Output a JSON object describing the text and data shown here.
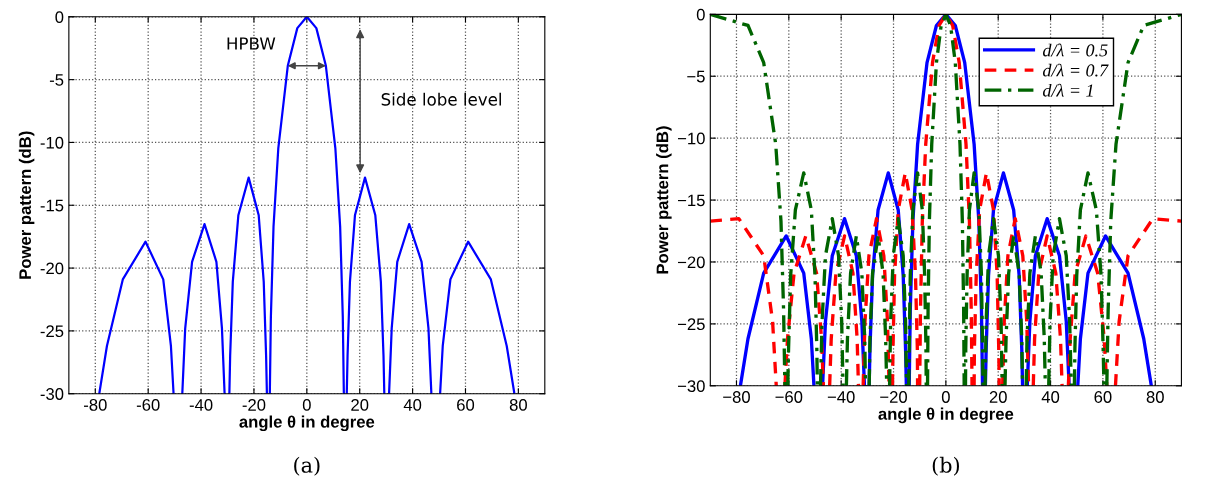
{
  "chart_data": [
    {
      "type": "line",
      "xlabel": "angle θ in degree",
      "ylabel": "Power pattern (dB)",
      "xlim": [
        -90,
        90
      ],
      "xticks": [
        -80,
        -60,
        -40,
        -20,
        0,
        20,
        40,
        60,
        80
      ],
      "ylim": [
        -30,
        0
      ],
      "yticks": [
        -30,
        -25,
        -20,
        -15,
        -10,
        -5,
        0
      ],
      "grid": true,
      "legend": false,
      "series": [
        {
          "color": "#0000ff",
          "line_style": "solid",
          "x": [
            -78.5,
            -75.6,
            -69.6,
            -61.0,
            -54.3,
            -51.4,
            -50.4,
            -48.6,
            -47.1,
            -46.0,
            -43.4,
            -38.7,
            -34.2,
            -32.1,
            -31.1,
            -30.0,
            -29.3,
            -29.0,
            -28.0,
            -25.9,
            -22.0,
            -18.2,
            -16.3,
            -15.4,
            -15.1,
            -14.5,
            -14.0,
            -13.6,
            -12.6,
            -10.8,
            -7.2,
            -3.6,
            0,
            3.6,
            7.2,
            10.8,
            12.6,
            13.6,
            14.0,
            14.5,
            15.1,
            15.4,
            16.3,
            18.2,
            22.0,
            25.9,
            28.0,
            29.0,
            29.3,
            30.0,
            31.1,
            32.1,
            34.2,
            38.7,
            43.4,
            46.0,
            47.1,
            48.6,
            50.4,
            51.4,
            54.3,
            61.0,
            69.6,
            75.6,
            78.5
          ],
          "values": [
            -30,
            -26.2,
            -20.9,
            -17.9,
            -20.9,
            -26.2,
            -30,
            null,
            -30,
            -24.8,
            -19.5,
            -16.5,
            -19.5,
            -24.8,
            -30,
            null,
            -30,
            -27.0,
            -21.1,
            -15.8,
            -12.8,
            -15.8,
            -21.1,
            -27.0,
            -30,
            null,
            -30,
            -23.9,
            -16.7,
            -10.5,
            -3.9,
            -0.9,
            0,
            -0.9,
            -3.9,
            -10.5,
            -16.7,
            -23.9,
            -30,
            null,
            -30,
            -27.0,
            -21.1,
            -15.8,
            -12.8,
            -15.8,
            -21.1,
            -27.0,
            -30,
            null,
            -30,
            -24.8,
            -19.5,
            -16.5,
            -19.5,
            -24.8,
            -30,
            null,
            -30,
            -26.2,
            -20.9,
            -17.9,
            -20.9,
            -26.2,
            -30
          ]
        }
      ],
      "annotations": [
        {
          "text": "HPBW",
          "x": 7.2,
          "y": -3.9
        },
        "Side lobe level",
        "(a)"
      ]
    },
    {
      "type": "line",
      "xlabel": "angle θ in degree",
      "ylabel": "Power pattern (dB)",
      "xlim": [
        -90,
        90
      ],
      "xticks": [
        {
          "value": -80,
          "label": "−80"
        },
        {
          "value": -60,
          "label": "−60"
        },
        {
          "value": -40,
          "label": "−40"
        },
        {
          "value": -20,
          "label": "−20"
        },
        0,
        20,
        40,
        60,
        80
      ],
      "ylim": [
        -30,
        0
      ],
      "yticks": [
        {
          "value": -30,
          "label": "−30"
        },
        {
          "value": -25,
          "label": "−25"
        },
        {
          "value": -20,
          "label": "−20"
        },
        {
          "value": -15,
          "label": "−15"
        },
        {
          "value": -10,
          "label": "−10"
        },
        {
          "value": -5,
          "label": "−5"
        },
        0
      ],
      "grid": true,
      "legend": "top right",
      "series": [
        {
          "name": "d/λ = 0.5",
          "color": "#0000ff",
          "line_style": "solid",
          "x": [
            -78.5,
            -75.6,
            -69.6,
            -61.0,
            -54.3,
            -51.4,
            -50.4,
            -48.6,
            -47.1,
            -46.0,
            -43.4,
            -38.7,
            -34.2,
            -32.1,
            -31.1,
            -30.0,
            -29.3,
            -29.0,
            -28.0,
            -25.9,
            -22.0,
            -18.2,
            -16.3,
            -15.4,
            -15.1,
            -14.5,
            -14.0,
            -13.6,
            -12.6,
            -10.8,
            -7.2,
            -3.6,
            0,
            3.6,
            7.2,
            10.8,
            12.6,
            13.6,
            14.0,
            14.5,
            15.1,
            15.4,
            16.3,
            18.2,
            22.0,
            25.9,
            28.0,
            29.0,
            29.3,
            30.0,
            31.1,
            32.1,
            34.2,
            38.7,
            43.4,
            46.0,
            47.1,
            48.6,
            50.4,
            51.4,
            54.3,
            61.0,
            69.6,
            75.6,
            78.5
          ],
          "values": [
            -30,
            -26.2,
            -20.9,
            -17.9,
            -20.9,
            -26.2,
            -30,
            null,
            -30,
            -24.8,
            -19.5,
            -16.5,
            -19.5,
            -24.8,
            -30,
            null,
            -30,
            -27.0,
            -21.1,
            -15.8,
            -12.8,
            -15.8,
            -21.1,
            -27.0,
            -30,
            null,
            -30,
            -23.9,
            -16.7,
            -10.5,
            -3.9,
            -0.9,
            0,
            -0.9,
            -3.9,
            -10.5,
            -16.7,
            -23.9,
            -30,
            null,
            -30,
            -27.0,
            -21.1,
            -15.8,
            -12.8,
            -15.8,
            -21.1,
            -27.0,
            -30,
            null,
            -30,
            -24.8,
            -19.5,
            -16.5,
            -19.5,
            -24.8,
            -30,
            null,
            -30,
            -26.2,
            -20.9,
            -17.9,
            -20.9,
            -26.2,
            -30
          ]
        },
        {
          "name": "d/λ = 0.7",
          "color": "#ff0000",
          "line_style": "dashed",
          "x": [
            -90,
            -79.1,
            -69.6,
            -66.2,
            -64.8,
            -63.2,
            -61.5,
            -60.5,
            -58.0,
            -53.5,
            -49.4,
            -47.5,
            -46.8,
            -45.6,
            -44.4,
            -43.8,
            -42.0,
            -38.7,
            -35.5,
            -33.9,
            -33.4,
            -32.4,
            -31.6,
            -30.9,
            -29.4,
            -26.5,
            -23.7,
            -22.3,
            -21.7,
            -20.9,
            -20.4,
            -20.2,
            -19.6,
            -18.2,
            -15.5,
            -12.9,
            -11.6,
            -10.9,
            -10.8,
            -10.3,
            -10.0,
            -9.7,
            -9.0,
            -7.7,
            -5.1,
            -2.6,
            0,
            2.6,
            5.1,
            7.7,
            9.0,
            9.7,
            10.0,
            10.3,
            10.8,
            10.9,
            11.6,
            12.9,
            15.5,
            18.2,
            19.6,
            20.2,
            20.4,
            20.9,
            21.7,
            22.3,
            23.7,
            26.5,
            29.4,
            30.9,
            31.6,
            32.4,
            33.4,
            33.9,
            35.5,
            38.7,
            42.0,
            43.8,
            44.4,
            45.6,
            46.8,
            47.5,
            49.4,
            53.5,
            58.0,
            60.5,
            61.5,
            63.2,
            64.8,
            66.2,
            69.6,
            79.1,
            90
          ],
          "values": [
            -16.7,
            -16.5,
            -19.5,
            -24.8,
            -30,
            null,
            -30,
            -26.2,
            -20.9,
            -17.9,
            -20.9,
            -26.2,
            -30,
            null,
            -30,
            -26.2,
            -20.9,
            -17.9,
            -20.9,
            -26.2,
            -30,
            null,
            -30,
            -24.8,
            -19.5,
            -16.5,
            -19.5,
            -24.8,
            -30,
            null,
            -30,
            -27.0,
            -21.1,
            -15.8,
            -12.8,
            -15.8,
            -21.1,
            -27.0,
            -30,
            null,
            -30,
            -23.9,
            -16.7,
            -10.5,
            -3.9,
            -0.9,
            0,
            -0.9,
            -3.9,
            -10.5,
            -16.7,
            -23.9,
            -30,
            null,
            -30,
            -27.0,
            -21.1,
            -15.8,
            -12.8,
            -15.8,
            -21.1,
            -27.0,
            -30,
            null,
            -30,
            -24.8,
            -19.5,
            -16.5,
            -19.5,
            -24.8,
            -30,
            null,
            -30,
            -26.2,
            -20.9,
            -17.9,
            -20.9,
            -26.2,
            -30,
            null,
            -30,
            -26.2,
            -20.9,
            -17.9,
            -20.9,
            -26.2,
            -30,
            null,
            -30,
            -24.8,
            -19.5,
            -16.5,
            -16.7
          ]
        },
        {
          "name": "d/λ = 1",
          "color": "#006400",
          "line_style": "dashdot",
          "x": [
            -90,
            -75.6,
            -69.6,
            -65.0,
            -63.0,
            -62.0,
            -61.5,
            -61.0,
            -60.4,
            -60.1,
            -59.3,
            -57.5,
            -54.3,
            -51.4,
            -50.0,
            -49.3,
            -49.1,
            -48.6,
            -47.9,
            -47.3,
            -46.0,
            -43.4,
            -41.0,
            -39.8,
            -39.3,
            -38.7,
            -38.0,
            -37.6,
            -36.4,
            -34.2,
            -32.1,
            -31.0,
            -30.7,
            -30.0,
            -29.3,
            -29.0,
            -28.0,
            -25.9,
            -24.0,
            -23.0,
            -22.6,
            -22.0,
            -21.5,
            -21.1,
            -20.1,
            -18.2,
            -16.3,
            -15.4,
            -15.0,
            -14.5,
            -14.2,
            -14.0,
            -13.6,
            -12.6,
            -10.8,
            -9.0,
            -8.1,
            -7.6,
            -7.5,
            -7.2,
            -7.0,
            -6.8,
            -6.3,
            -5.4,
            -3.6,
            -1.8,
            0,
            1.8,
            3.6,
            5.4,
            6.3,
            6.8,
            7.0,
            7.2,
            7.5,
            7.6,
            8.1,
            9.0,
            10.8,
            12.6,
            13.6,
            14.0,
            14.2,
            14.5,
            15.0,
            15.4,
            16.3,
            18.2,
            20.1,
            21.1,
            21.5,
            22.0,
            22.6,
            23.0,
            24.0,
            25.9,
            28.0,
            29.0,
            29.3,
            30.0,
            30.7,
            31.0,
            32.1,
            34.2,
            36.4,
            37.6,
            38.0,
            38.7,
            39.3,
            39.8,
            41.0,
            43.4,
            46.0,
            47.3,
            47.9,
            48.6,
            49.1,
            49.3,
            50.0,
            51.4,
            54.3,
            57.5,
            59.3,
            60.1,
            60.4,
            61.0,
            61.5,
            62.0,
            63.0,
            65.0,
            69.6,
            75.6,
            90
          ],
          "values": [
            0,
            -0.9,
            -3.9,
            -10.5,
            -16.7,
            -23.9,
            -30,
            null,
            -30,
            -27.0,
            -21.1,
            -15.8,
            -12.8,
            -15.8,
            -21.1,
            -27.0,
            -30,
            null,
            -30,
            -24.8,
            -19.5,
            -16.5,
            -19.5,
            -24.8,
            -30,
            null,
            -30,
            -26.2,
            -20.9,
            -17.9,
            -20.9,
            -26.2,
            -30,
            null,
            -30,
            -26.2,
            -20.9,
            -17.9,
            -20.9,
            -26.2,
            -30,
            null,
            -30,
            -24.8,
            -19.5,
            -16.5,
            -19.5,
            -24.8,
            -30,
            null,
            -30,
            -27.0,
            -21.1,
            -15.8,
            -12.8,
            -15.8,
            -21.1,
            -27.0,
            -30,
            null,
            -30,
            -23.9,
            -16.7,
            -10.5,
            -3.9,
            -0.9,
            0,
            -0.9,
            -3.9,
            -10.5,
            -16.7,
            -23.9,
            -30,
            null,
            -30,
            -27.0,
            -21.1,
            -15.8,
            -12.8,
            -15.8,
            -21.1,
            -27.0,
            -30,
            null,
            -30,
            -24.8,
            -19.5,
            -16.5,
            -19.5,
            -24.8,
            -30,
            null,
            -30,
            -26.2,
            -20.9,
            -17.9,
            -20.9,
            -26.2,
            -30,
            null,
            -30,
            -26.2,
            -20.9,
            -17.9,
            -20.9,
            -26.2,
            -30,
            null,
            -30,
            -24.8,
            -19.5,
            -16.5,
            -19.5,
            -24.8,
            -30,
            null,
            -30,
            -27.0,
            -21.1,
            -15.8,
            -12.8,
            -15.8,
            -21.1,
            -27.0,
            -30,
            null,
            -30,
            -23.9,
            -16.7,
            -10.5,
            -3.9,
            -0.9,
            0
          ]
        }
      ],
      "annotations": [
        "(b)"
      ]
    }
  ]
}
